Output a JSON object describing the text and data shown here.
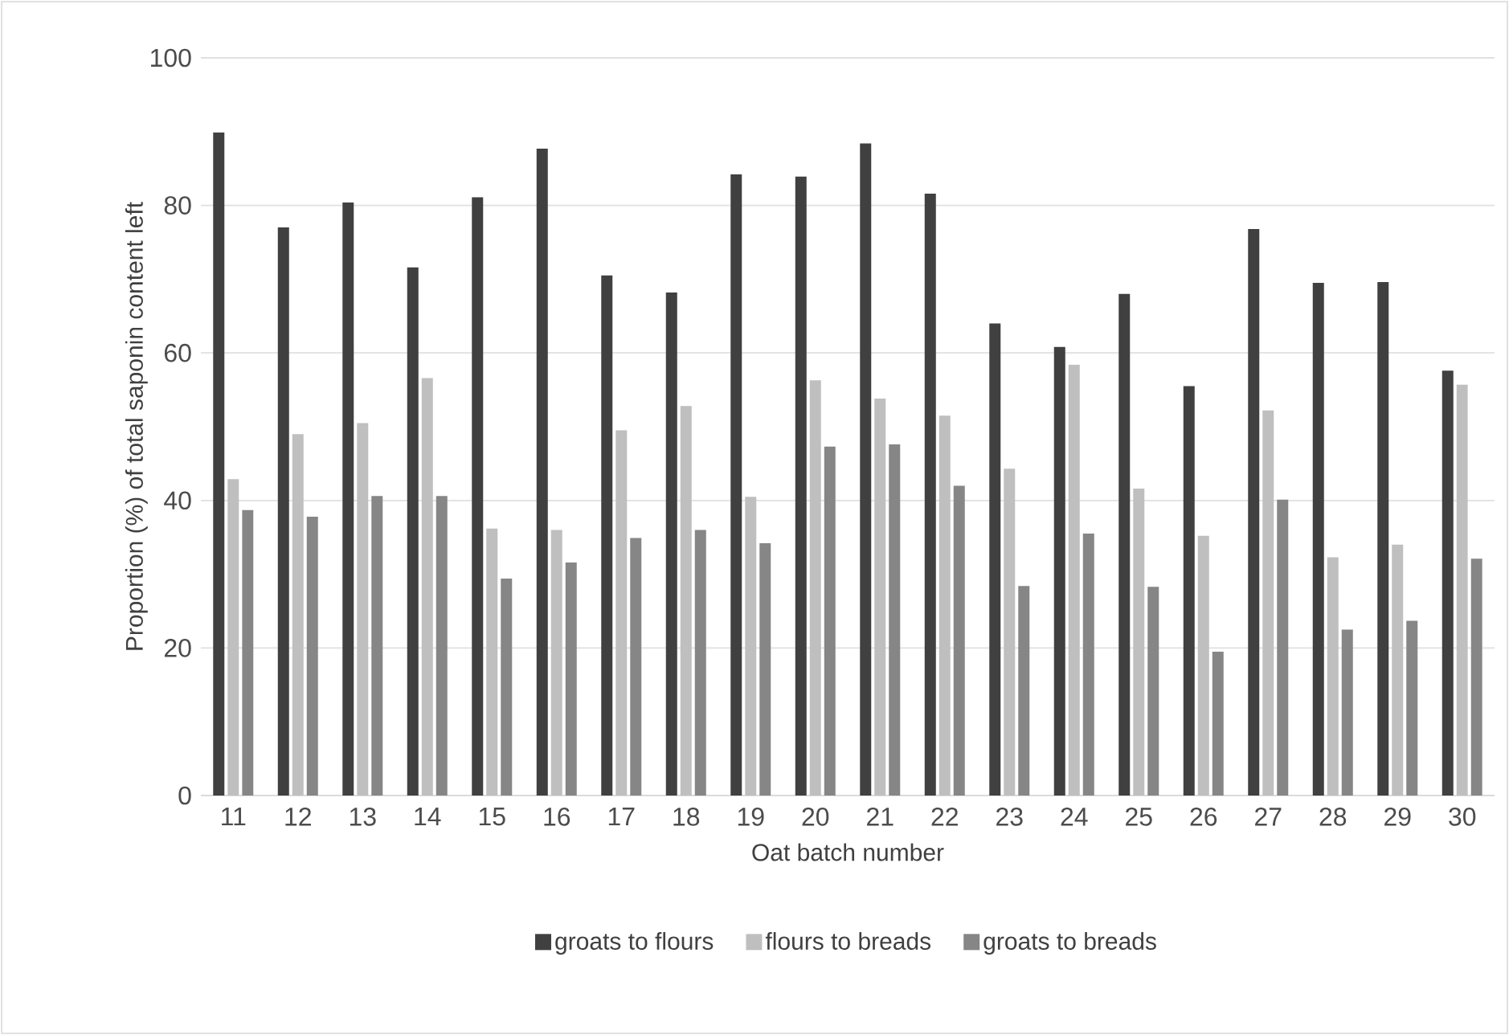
{
  "chart_data": {
    "type": "bar",
    "xlabel": "Oat batch number",
    "ylabel": "Proportion (%) of total saponin content left",
    "categories": [
      "11",
      "12",
      "13",
      "14",
      "15",
      "16",
      "17",
      "18",
      "19",
      "20",
      "21",
      "22",
      "23",
      "24",
      "25",
      "26",
      "27",
      "28",
      "29",
      "30"
    ],
    "series": [
      {
        "name": "groats to flours",
        "color": "#404040",
        "values": [
          89.9,
          77.0,
          80.4,
          71.6,
          81.1,
          87.7,
          70.5,
          68.2,
          84.2,
          83.9,
          88.4,
          81.6,
          64.0,
          60.8,
          68.0,
          55.5,
          76.8,
          69.5,
          69.6,
          57.6
        ]
      },
      {
        "name": "flours to breads",
        "color": "#bfbfbf",
        "values": [
          42.9,
          49.0,
          50.5,
          56.6,
          36.2,
          36.0,
          49.5,
          52.8,
          40.5,
          56.3,
          53.8,
          51.5,
          44.3,
          58.4,
          41.6,
          35.2,
          52.2,
          32.3,
          34.0,
          55.7
        ]
      },
      {
        "name": "groats to breads",
        "color": "#868686",
        "values": [
          38.7,
          37.8,
          40.6,
          40.6,
          29.4,
          31.6,
          34.9,
          36.0,
          34.2,
          47.3,
          47.6,
          42.0,
          28.4,
          35.5,
          28.3,
          19.5,
          40.1,
          22.5,
          23.7,
          32.1
        ]
      }
    ],
    "ylim": [
      0,
      100
    ],
    "yticks": [
      0,
      20,
      40,
      60,
      80,
      100
    ],
    "grid": "y",
    "legend": "bottom"
  }
}
